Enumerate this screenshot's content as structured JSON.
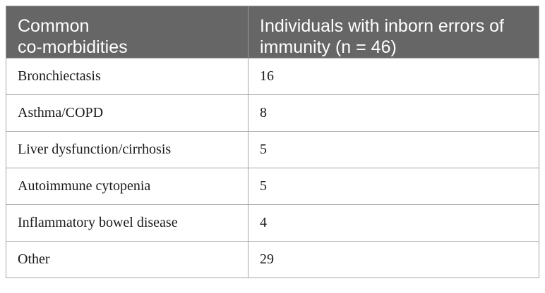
{
  "table": {
    "headers": [
      [
        "Common",
        "co-morbidities"
      ],
      [
        "Individuals with inborn errors of",
        "immunity (n = 46)"
      ]
    ],
    "rows": [
      [
        "Bronchiectasis",
        "16"
      ],
      [
        "Asthma/COPD",
        "8"
      ],
      [
        "Liver dysfunction/cirrhosis",
        "5"
      ],
      [
        "Autoimmune cytopenia",
        "5"
      ],
      [
        "Inflammatory bowel disease",
        "4"
      ],
      [
        "Other",
        "29"
      ]
    ]
  },
  "colors": {
    "header_background": "#666666",
    "header_text": "#ffffff",
    "border": "#a6a6a6"
  }
}
